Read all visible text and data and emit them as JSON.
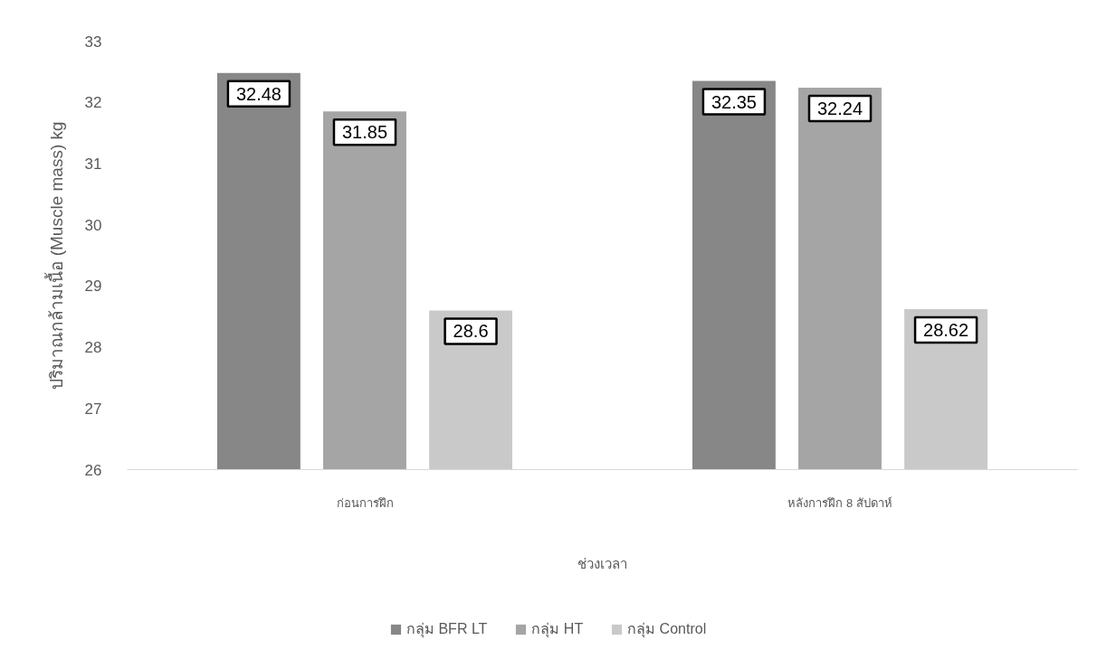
{
  "chart_data": {
    "type": "bar",
    "categories": [
      "ก่อนการฝึก",
      "หลังการฝึก 8 สัปดาห์"
    ],
    "xlabel": "ช่วงเวลา",
    "ylabel": "ปริมาณกล้ามเนื้อ (Muscle mass) kg",
    "series": [
      {
        "name": "กลุ่ม BFR LT",
        "color": "#878787",
        "values": [
          32.48,
          32.35
        ]
      },
      {
        "name": "กลุ่ม HT",
        "color": "#a5a5a5",
        "values": [
          31.85,
          32.24
        ]
      },
      {
        "name": "กลุ่ม Control",
        "color": "#c9c9c9",
        "values": [
          28.6,
          28.62
        ]
      }
    ],
    "ylim": [
      26,
      33
    ],
    "yticks": [
      26,
      27,
      28,
      29,
      30,
      31,
      32,
      33
    ],
    "grid": false,
    "legend": "bottom",
    "data_labels": true
  }
}
